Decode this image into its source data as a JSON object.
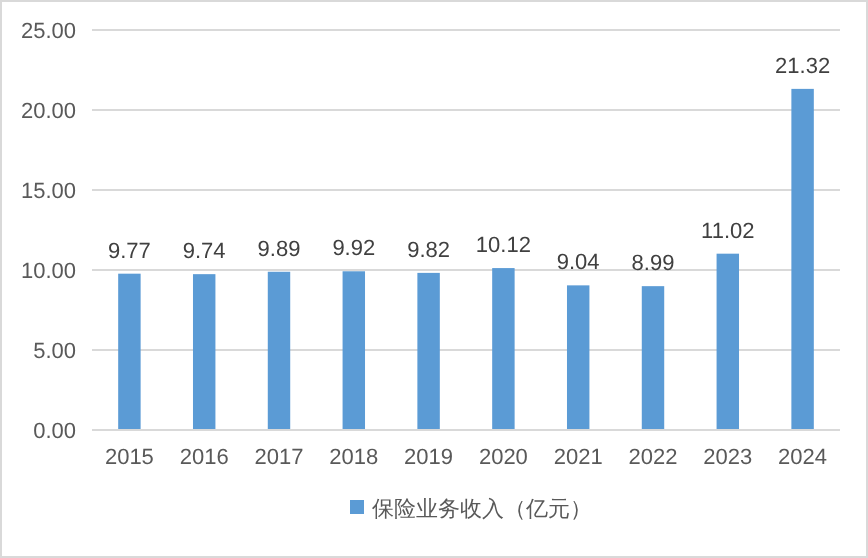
{
  "chart_data": {
    "type": "bar",
    "categories": [
      "2015",
      "2016",
      "2017",
      "2018",
      "2019",
      "2020",
      "2021",
      "2022",
      "2023",
      "2024"
    ],
    "series": [
      {
        "name": "保险业务收入（亿元）",
        "color": "#5b9bd5",
        "values": [
          9.77,
          9.74,
          9.89,
          9.92,
          9.82,
          10.12,
          9.04,
          8.99,
          11.02,
          21.32
        ]
      }
    ],
    "ylim": [
      0,
      25
    ],
    "yticks": [
      {
        "value": 0,
        "label": "0.00"
      },
      {
        "value": 5,
        "label": "5.00"
      },
      {
        "value": 10,
        "label": "10.00"
      },
      {
        "value": 15,
        "label": "15.00"
      },
      {
        "value": 20,
        "label": "20.00"
      },
      {
        "value": 25,
        "label": "25.00"
      }
    ],
    "data_labels": true,
    "grid": "y",
    "legend": "bottom"
  }
}
